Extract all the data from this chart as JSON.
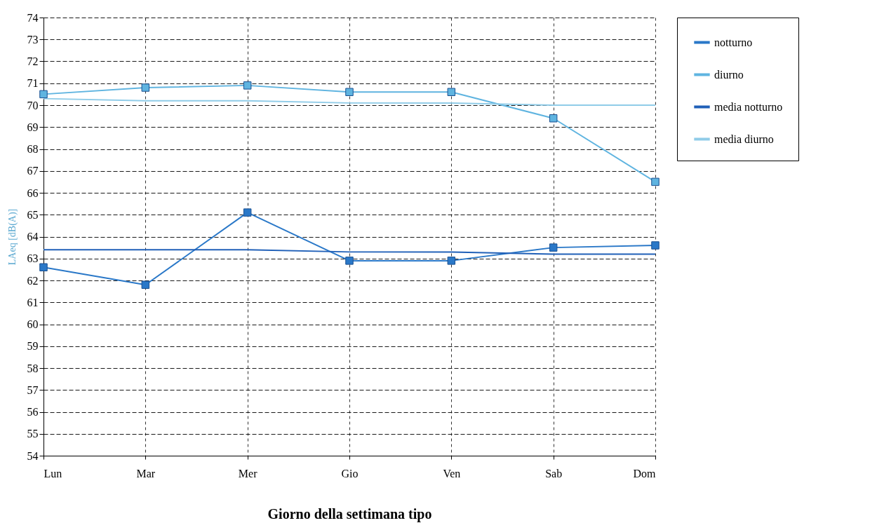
{
  "chart_data": {
    "type": "line",
    "xlabel": "Giorno della settimana tipo",
    "ylabel": "LAeq [dB(A)]",
    "categories": [
      "Lun",
      "Mar",
      "Mer",
      "Gio",
      "Ven",
      "Sab",
      "Dom"
    ],
    "series": [
      {
        "name": "notturno",
        "color": "#2a78c8",
        "marker": "square",
        "values": [
          62.6,
          61.8,
          65.1,
          62.9,
          62.9,
          63.5,
          63.6
        ]
      },
      {
        "name": "diurno",
        "color": "#5fb4e0",
        "marker": "square",
        "values": [
          70.5,
          70.8,
          70.9,
          70.6,
          70.6,
          69.4,
          66.5
        ]
      },
      {
        "name": "media notturno",
        "color": "#2060b8",
        "marker": "none",
        "values": [
          63.4,
          63.4,
          63.4,
          63.3,
          63.3,
          63.2,
          63.2
        ]
      },
      {
        "name": "media diurno",
        "color": "#90cce8",
        "marker": "none",
        "values": [
          70.3,
          70.2,
          70.2,
          70.1,
          70.1,
          70.0,
          70.0
        ]
      }
    ],
    "ylim": [
      54,
      74
    ],
    "yticks": [
      54,
      55,
      56,
      57,
      58,
      59,
      60,
      61,
      62,
      63,
      64,
      65,
      66,
      67,
      68,
      69,
      70,
      71,
      72,
      73,
      74
    ],
    "grid": true,
    "legend": "top right",
    "line_style": "solid"
  }
}
